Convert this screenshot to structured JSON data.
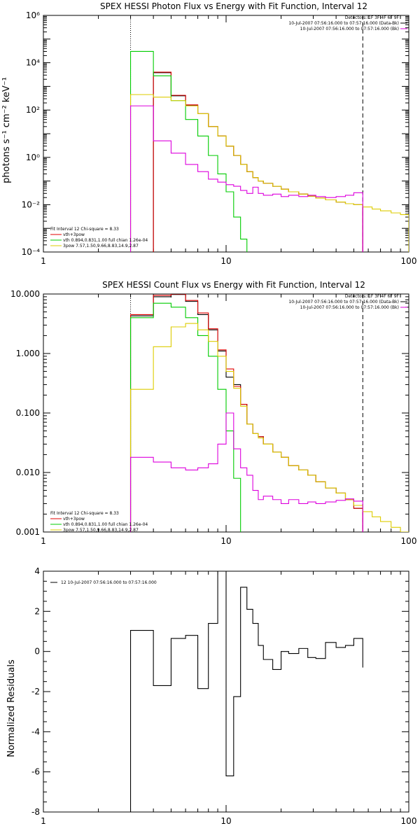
{
  "chart_data": [
    {
      "type": "line",
      "title": "SPEX HESSI Photon Flux vs Energy with Fit Function, Interval 12",
      "ylabel": "photons s⁻¹ cm⁻² keV⁻¹",
      "xlabel": "",
      "xscale": "log",
      "yscale": "log",
      "xlim": [
        1,
        100
      ],
      "ylim": [
        0.0001,
        1000000
      ],
      "xticks": [
        "1",
        "10",
        "100"
      ],
      "yticks": [
        "10⁻⁴",
        "10⁻²",
        "10⁰",
        "10²",
        "10⁴",
        "10⁶"
      ],
      "edges": [
        3.0,
        4.0,
        5.0,
        6.0,
        7.0,
        8.0,
        9.0,
        10.0,
        11.0,
        12.0,
        13.0,
        14.0,
        15.0,
        16.0,
        18.0,
        20.0,
        22.0,
        25.0,
        28.0,
        31.0,
        35.0,
        40.0,
        45.0,
        50.0,
        56.0,
        63.0,
        70.0,
        80.0,
        90.0,
        100.0
      ],
      "markers": {
        "dotted": 3.0,
        "dashed": 56.0
      },
      "header": [
        "Detectors: 1F 3F 4F 6F 9F",
        "10-Jul-2007 07:56:16.000 to 07:57:16.000 (Data-Bk)",
        "10-Jul-2007 07:56:16.000 to 07:57:16.000 (Bk)"
      ],
      "legend": [
        "Fit Interval 12   Chi-square = 8.33",
        "vth+3pow",
        "vth 0.894,0.831,1.00  full chian 1.26e-04",
        "3pow 7.57,1.50,9.66,8.83,14.9,2.87"
      ],
      "series": [
        {
          "name": "Data-Bk",
          "color": "#000000",
          "values": [
            null,
            3800,
            400,
            160,
            70,
            20,
            8,
            3,
            1.2,
            0.5,
            0.25,
            0.14,
            0.1,
            0.08,
            0.06,
            0.045,
            0.035,
            0.028,
            0.023,
            0.019,
            0.016,
            0.013,
            0.011,
            0.01,
            null,
            null,
            null,
            null,
            null
          ]
        },
        {
          "name": "vth+3pow",
          "color": "#e00000",
          "values": [
            null,
            4000,
            420,
            165,
            70,
            20,
            8,
            3,
            1.2,
            0.5,
            0.25,
            0.14,
            0.1,
            0.08,
            0.06,
            0.045,
            0.035,
            0.028,
            0.023,
            0.019,
            0.016,
            0.013,
            0.011,
            0.01,
            null,
            null,
            null,
            null,
            null
          ]
        },
        {
          "name": "vth",
          "color": "#00cc00",
          "values": [
            30000,
            2800,
            250,
            40,
            8,
            1.2,
            0.2,
            0.035,
            0.003,
            0.00035,
            9e-05,
            9e-05,
            null,
            null,
            null,
            null,
            null,
            null,
            null,
            null,
            null,
            null,
            null,
            null,
            null,
            null,
            null,
            null,
            null
          ]
        },
        {
          "name": "3pow",
          "color": "#ddcc00",
          "values": [
            450,
            350,
            250,
            150,
            70,
            20,
            8,
            3,
            1.2,
            0.5,
            0.25,
            0.14,
            0.1,
            0.08,
            0.06,
            0.045,
            0.035,
            0.028,
            0.023,
            0.019,
            0.016,
            0.013,
            0.011,
            0.01,
            0.008,
            0.0065,
            0.0055,
            0.0045,
            0.0038
          ]
        },
        {
          "name": "Bk",
          "color": "#dd00dd",
          "values": [
            150,
            5,
            1.5,
            0.5,
            0.25,
            0.12,
            0.09,
            0.07,
            0.06,
            0.04,
            0.03,
            0.055,
            0.03,
            0.025,
            0.028,
            0.022,
            0.025,
            0.022,
            0.025,
            0.022,
            0.02,
            0.022,
            0.025,
            0.032,
            null,
            null,
            null,
            null,
            null
          ]
        }
      ]
    },
    {
      "type": "line",
      "title": "SPEX HESSI Count Flux vs Energy with Fit Function, Interval 12",
      "ylabel": "",
      "xlabel": "",
      "xscale": "log",
      "yscale": "log",
      "xlim": [
        1,
        100
      ],
      "ylim": [
        0.001,
        10
      ],
      "xticks": [
        "1",
        "10",
        "100"
      ],
      "yticks": [
        "0.001",
        "0.010",
        "0.100",
        "1.000",
        "10.000"
      ],
      "edges": [
        3.0,
        4.0,
        5.0,
        6.0,
        7.0,
        8.0,
        9.0,
        10.0,
        11.0,
        12.0,
        13.0,
        14.0,
        15.0,
        16.0,
        18.0,
        20.0,
        22.0,
        25.0,
        28.0,
        31.0,
        35.0,
        40.0,
        45.0,
        50.0,
        56.0,
        63.0,
        70.0,
        80.0,
        90.0,
        100.0
      ],
      "markers": {
        "dotted": 3.0,
        "dashed": 56.0
      },
      "header": [
        "Detectors: 1F 3F 4F 6F 9F",
        "10-Jul-2007 07:56:16.000 to 07:57:16.000 (Data-Bk)",
        "10-Jul-2007 07:56:16.000 to 07:57:16.000 (Bk)"
      ],
      "legend": [
        "Fit Interval 12   Chi-square = 8.33",
        "vth+3pow",
        "vth 0.894,0.831,1.00  full chian 1.26e-04",
        "3pow 7.57,1.50,9.66,8.83,14.9,2.87"
      ],
      "series": [
        {
          "name": "Data-Bk",
          "color": "#000000",
          "values": [
            4.3,
            9.0,
            9.8,
            7.5,
            4.5,
            2.5,
            1.1,
            0.4,
            0.3,
            0.14,
            0.065,
            0.045,
            0.04,
            0.03,
            0.022,
            0.018,
            0.013,
            0.011,
            0.009,
            0.007,
            0.0055,
            0.0045,
            0.0035,
            0.0025,
            null,
            null,
            null,
            null,
            null
          ]
        },
        {
          "name": "vth+3pow",
          "color": "#e00000",
          "values": [
            4.5,
            9.5,
            10.0,
            7.8,
            4.8,
            2.6,
            1.15,
            0.55,
            0.28,
            0.14,
            0.065,
            0.045,
            0.04,
            0.03,
            0.022,
            0.018,
            0.013,
            0.011,
            0.009,
            0.007,
            0.0055,
            0.0045,
            0.0035,
            0.0025,
            null,
            null,
            null,
            null,
            null
          ]
        },
        {
          "name": "vth",
          "color": "#00cc00",
          "values": [
            4.0,
            7.0,
            6.0,
            4.0,
            2.0,
            0.9,
            0.25,
            0.05,
            0.008,
            null,
            null,
            null,
            null,
            null,
            null,
            null,
            null,
            null,
            null,
            null,
            null,
            null,
            null,
            null,
            null,
            null,
            null,
            null,
            null
          ]
        },
        {
          "name": "3pow",
          "color": "#ddcc00",
          "values": [
            0.25,
            1.3,
            2.8,
            3.2,
            2.5,
            1.6,
            0.9,
            0.5,
            0.26,
            0.13,
            0.065,
            0.045,
            0.038,
            0.03,
            0.022,
            0.018,
            0.013,
            0.011,
            0.009,
            0.007,
            0.0055,
            0.0045,
            0.0035,
            0.0028,
            0.0022,
            0.0018,
            0.0015,
            0.0012,
            0.001
          ]
        },
        {
          "name": "Bk",
          "color": "#dd00dd",
          "values": [
            0.018,
            0.015,
            0.012,
            0.011,
            0.012,
            0.014,
            0.03,
            0.1,
            0.025,
            0.012,
            0.009,
            0.005,
            0.0035,
            0.004,
            0.0035,
            0.003,
            0.0035,
            0.003,
            0.0032,
            0.003,
            0.0032,
            0.0034,
            0.0036,
            0.0033,
            null,
            null,
            null,
            null,
            null
          ]
        }
      ]
    },
    {
      "type": "line",
      "title": "",
      "ylabel": "Normalized  Residuals",
      "xlabel": "",
      "xscale": "log",
      "yscale": "linear",
      "xlim": [
        1,
        100
      ],
      "ylim": [
        -8,
        4
      ],
      "xticks": [
        "1",
        "10",
        "100"
      ],
      "yticks": [
        "-8",
        "-6",
        "-4",
        "-2",
        "0",
        "2",
        "4"
      ],
      "edges": [
        3.0,
        4.0,
        5.0,
        6.0,
        7.0,
        8.0,
        9.0,
        10.0,
        11.0,
        12.0,
        13.0,
        14.0,
        15.0,
        16.0,
        18.0,
        20.0,
        22.0,
        25.0,
        28.0,
        31.0,
        35.0,
        40.0,
        45.0,
        50.0,
        56.0
      ],
      "legend": [
        "12  10-Jul-2007 07:56:16.000 to 07:57:16.000"
      ],
      "series": [
        {
          "name": "12  10-Jul-2007 07:56:16.000 to 07:57:16.000",
          "color": "#000000",
          "values": [
            1.05,
            -1.7,
            0.65,
            0.8,
            -1.85,
            1.4,
            4.05,
            -6.2,
            -2.25,
            3.2,
            2.1,
            1.4,
            0.3,
            -0.4,
            -0.9,
            0.0,
            -0.1,
            0.15,
            -0.3,
            -0.35,
            0.45,
            0.2,
            0.3,
            0.65,
            -0.8
          ]
        }
      ]
    }
  ]
}
